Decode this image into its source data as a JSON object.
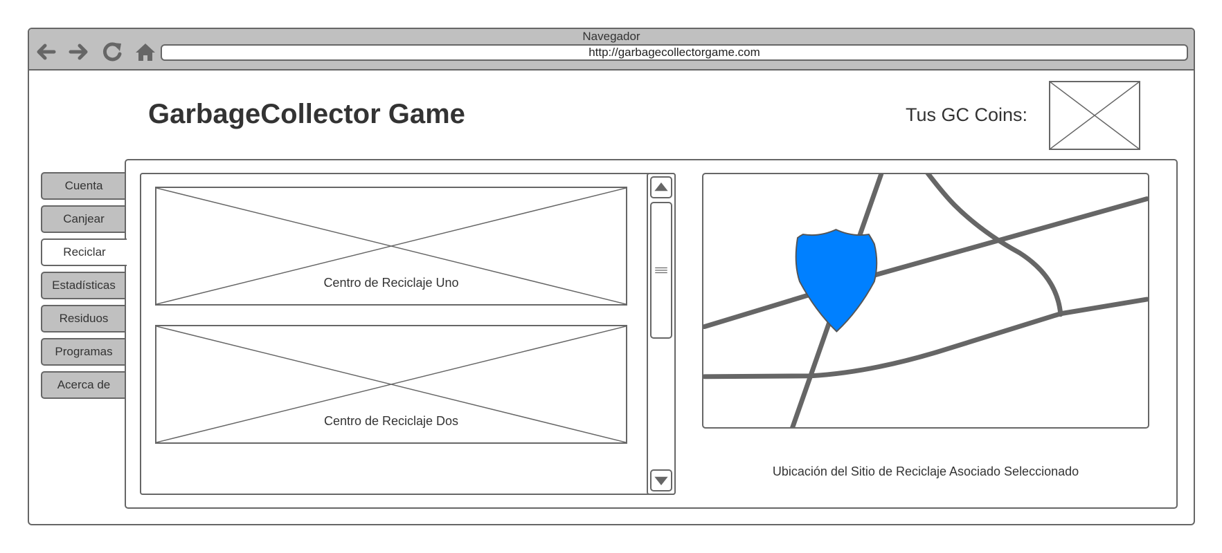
{
  "browser": {
    "title": "Navegador",
    "url": "http://garbagecollectorgame.com",
    "icons": [
      "back-arrow-icon",
      "forward-arrow-icon",
      "reload-icon",
      "home-icon"
    ]
  },
  "header": {
    "app_title": "GarbageCollector Game",
    "coins_label": "Tus GC Coins:"
  },
  "sidebar": {
    "tabs": [
      {
        "label": "Cuenta"
      },
      {
        "label": "Canjear"
      },
      {
        "label": "Reciclar"
      },
      {
        "label": "Estadísticas"
      },
      {
        "label": "Residuos"
      },
      {
        "label": "Programas"
      },
      {
        "label": "Acerca de"
      }
    ],
    "active": "Reciclar"
  },
  "recycling_list": {
    "items": [
      {
        "label": "Centro de Reciclaje Uno"
      },
      {
        "label": "Centro de Reciclaje Dos"
      }
    ]
  },
  "map": {
    "caption": "Ubicación del Sitio de Reciclaje Asociado Seleccionado",
    "marker_color": "#0080ff",
    "road_color": "#666666"
  },
  "colors": {
    "chrome": "#c0c0c0",
    "border": "#666666",
    "text": "#333333"
  }
}
